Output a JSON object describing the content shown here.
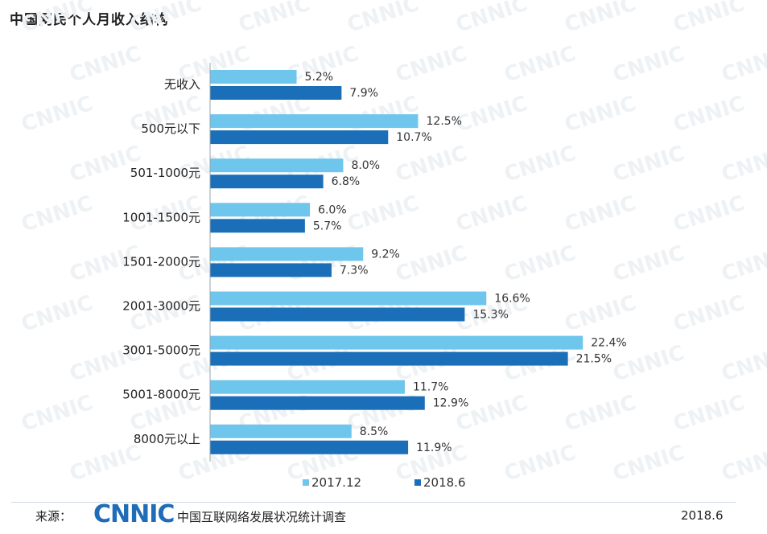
{
  "page": {
    "title": "中国网民个人月收入结构",
    "source_label": "来源：",
    "logo_text": "CNNIC",
    "report_name": "中国互联网络发展状况统计调查",
    "date": "2018.6",
    "watermark_text": "CNNIC"
  },
  "chart_data": {
    "type": "bar",
    "orientation": "horizontal",
    "title": "中国网民个人月收入结构",
    "categories": [
      "无收入",
      "500元以下",
      "501-1000元",
      "1001-1500元",
      "1501-2000元",
      "2001-3000元",
      "3001-5000元",
      "5001-8000元",
      "8000元以上"
    ],
    "series": [
      {
        "name": "2017.12",
        "color": "#6ec6ec",
        "values": [
          5.2,
          12.5,
          8.0,
          6.0,
          9.2,
          16.6,
          22.4,
          11.7,
          8.5
        ],
        "labels": [
          "5.2%",
          "12.5%",
          "8.0%",
          "6.0%",
          "9.2%",
          "16.6%",
          "22.4%",
          "11.7%",
          "8.5%"
        ]
      },
      {
        "name": "2018.6",
        "color": "#1a6fb8",
        "values": [
          7.9,
          10.7,
          6.8,
          5.7,
          7.3,
          15.3,
          21.5,
          12.9,
          11.9
        ],
        "labels": [
          "7.9%",
          "10.7%",
          "6.8%",
          "5.7%",
          "7.3%",
          "15.3%",
          "21.5%",
          "12.9%",
          "11.9%"
        ]
      }
    ],
    "unit": "%",
    "grid": false,
    "legend": "bottom-center"
  }
}
